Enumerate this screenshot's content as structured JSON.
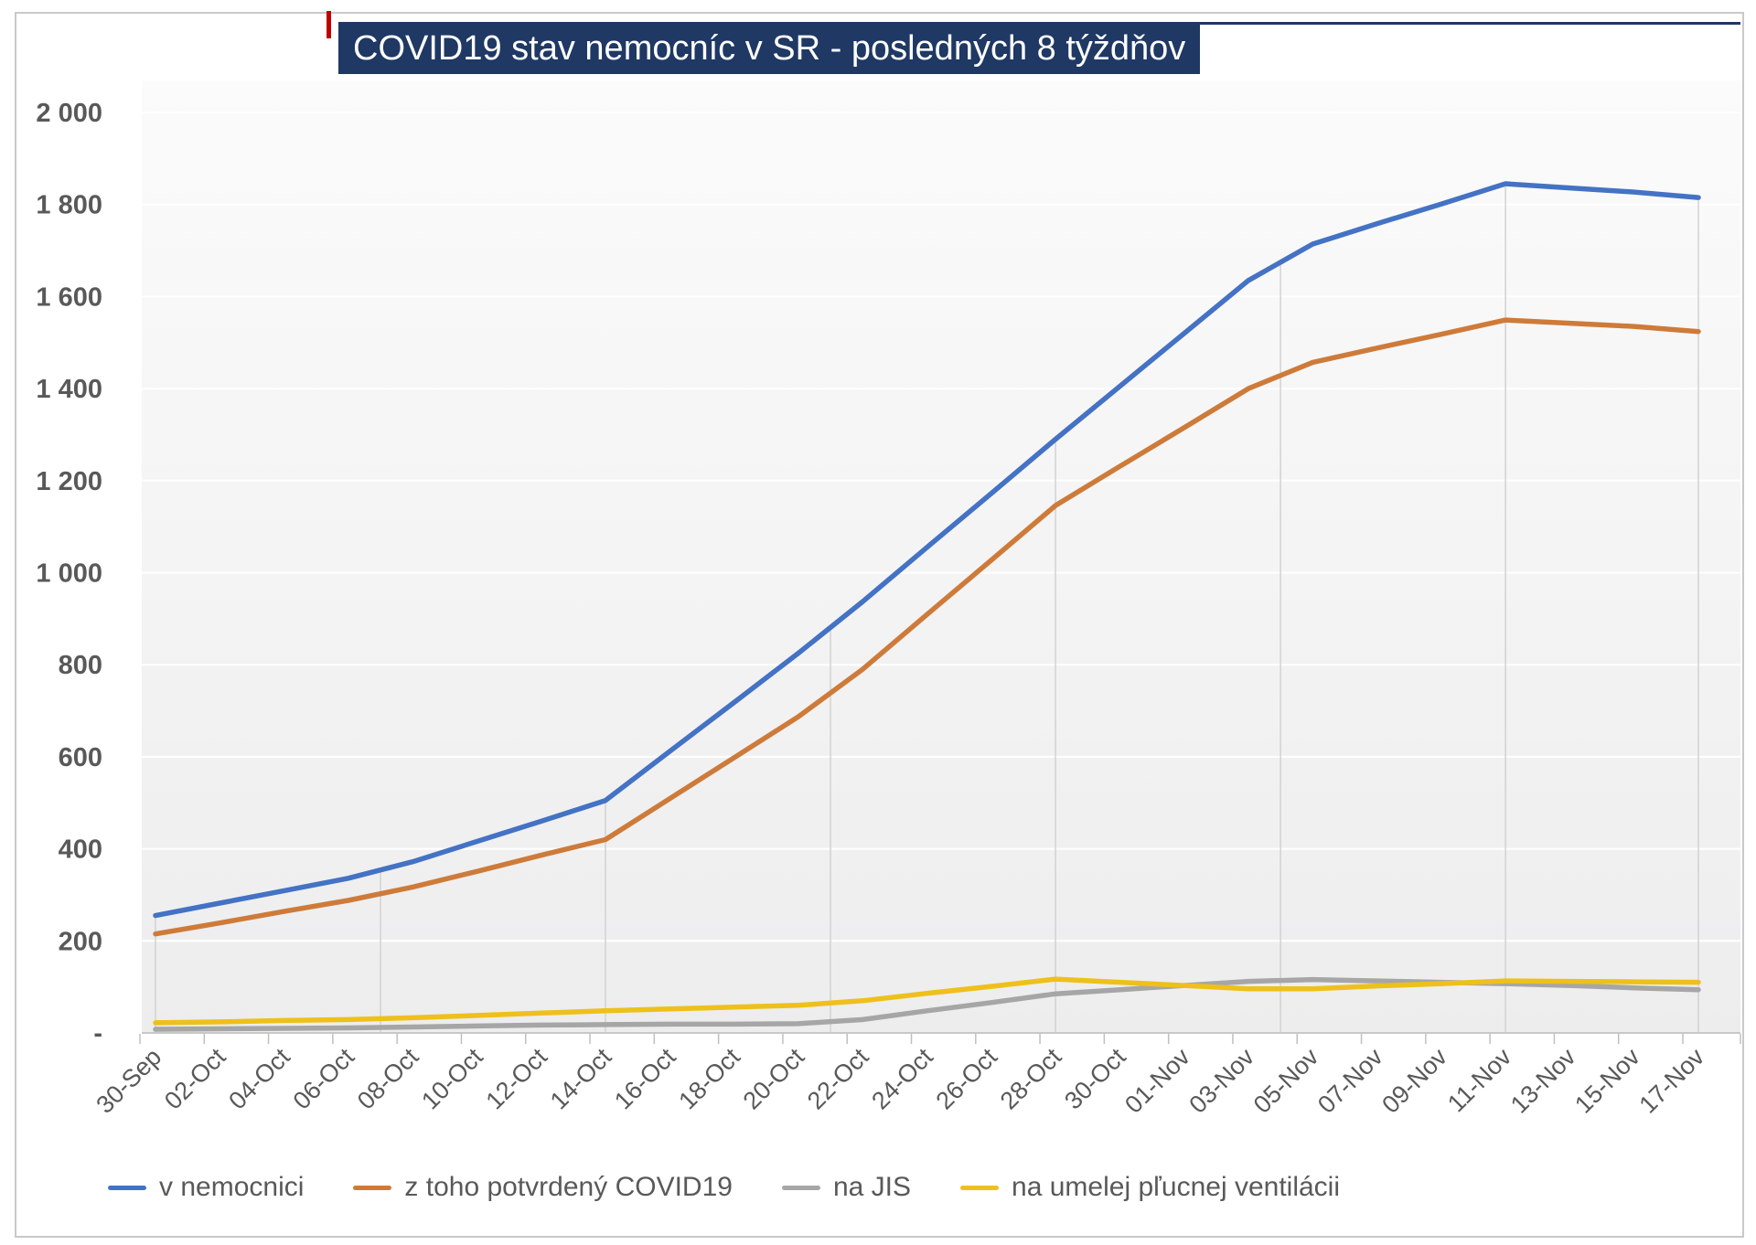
{
  "chart_data": {
    "type": "line",
    "title": "COVID19 stav nemocníc v SR - posledných 8 týždňov",
    "categories": [
      "30-Sep",
      "02-Oct",
      "04-Oct",
      "06-Oct",
      "08-Oct",
      "10-Oct",
      "12-Oct",
      "14-Oct",
      "16-Oct",
      "18-Oct",
      "20-Oct",
      "22-Oct",
      "24-Oct",
      "26-Oct",
      "28-Oct",
      "30-Oct",
      "01-Nov",
      "03-Nov",
      "05-Nov",
      "07-Nov",
      "09-Nov",
      "11-Nov",
      "13-Nov",
      "15-Nov",
      "17-Nov"
    ],
    "series": [
      {
        "name": "v nemocnici",
        "color": "#4472C4",
        "values": [
          255,
          282,
          309,
          336,
          372,
          416,
          460,
          505,
          612,
          718,
          825,
          937,
          1055,
          1172,
          1290,
          1405,
          1520,
          1635,
          1714,
          1758,
          1801,
          1845,
          1836,
          1827,
          1815
        ]
      },
      {
        "name": "z toho potvrdený COVID19",
        "color": "#CE7B3A",
        "values": [
          215,
          239,
          264,
          288,
          317,
          351,
          386,
          420,
          509,
          598,
          687,
          790,
          909,
          1027,
          1146,
          1231,
          1315,
          1400,
          1457,
          1488,
          1518,
          1549,
          1542,
          1535,
          1524
        ]
      },
      {
        "name": "na JIS",
        "color": "#A6A6A6",
        "values": [
          8,
          9,
          10,
          11,
          13,
          15,
          17,
          18,
          19,
          19,
          20,
          29,
          48,
          66,
          85,
          94,
          103,
          112,
          116,
          113,
          110,
          107,
          103,
          98,
          94
        ]
      },
      {
        "name": "na umelej pľucnej ventilácii",
        "color": "#EEC01B",
        "values": [
          22,
          24,
          27,
          29,
          33,
          38,
          43,
          48,
          52,
          56,
          60,
          70,
          86,
          101,
          117,
          110,
          103,
          96,
          96,
          102,
          107,
          113,
          112,
          111,
          110
        ]
      }
    ],
    "xlabel": "",
    "ylabel": "",
    "ylim": [
      0,
      2000
    ],
    "y_tick_step": 200,
    "y_tick_labels": [
      "-",
      "200",
      "400",
      "600",
      "800",
      "1 000",
      "1 200",
      "1 400",
      "1 600",
      "1 800",
      "2 000"
    ],
    "grid": {
      "horizontal": true,
      "vertical_weekly_droplines": true,
      "weekly_days": [
        0,
        7,
        14,
        21,
        28,
        35,
        42,
        48
      ]
    },
    "legend_position": "bottom",
    "colors": {
      "title_bg": "#1F3864",
      "title_text": "#FFFFFF",
      "axis_label": "#595959",
      "axis_line": "#C8C8C8",
      "tick": "#BFBFBF",
      "vertical_gridline": "#D2D2D2",
      "horizontal_gridline": "#FFFFFF",
      "plot_bg_top": "#FBFBFB",
      "plot_bg_bottom": "#EDEDEE",
      "chart_border": "#C9C9C9",
      "red_marker": "#C00000"
    }
  }
}
